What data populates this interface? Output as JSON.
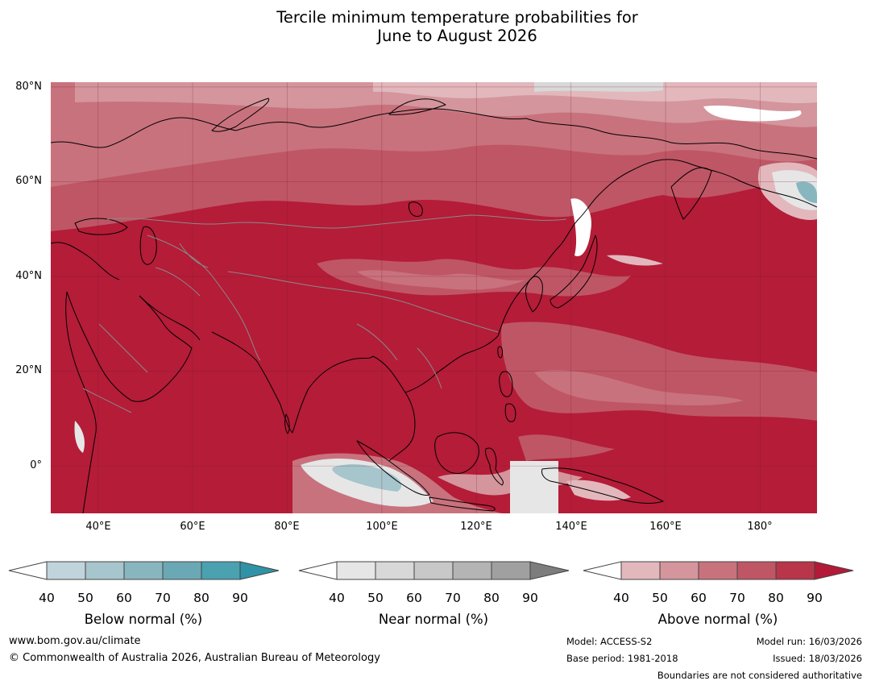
{
  "title_line1": "Tercile minimum temperature probabilities for",
  "title_line2": "June to August 2026",
  "map": {
    "lat_labels": [
      "80°N",
      "60°N",
      "40°N",
      "20°N",
      "0°"
    ],
    "lon_labels": [
      "40°E",
      "60°E",
      "80°E",
      "100°E",
      "120°E",
      "140°E",
      "160°E",
      "180°"
    ],
    "lon_range": [
      30,
      192
    ],
    "lat_range": [
      -10,
      81
    ]
  },
  "legends": [
    {
      "title": "Below normal (%)",
      "ticks": [
        "40",
        "50",
        "60",
        "70",
        "80",
        "90"
      ],
      "colors": [
        "#c0d4db",
        "#a6c5cc",
        "#88b6bf",
        "#6aa8b5",
        "#4aa1b0",
        "#2f92a6"
      ]
    },
    {
      "title": "Near normal (%)",
      "ticks": [
        "40",
        "50",
        "60",
        "70",
        "80",
        "90"
      ],
      "colors": [
        "#e6e6e6",
        "#d8d8d8",
        "#c8c8c8",
        "#b4b4b4",
        "#a0a0a0",
        "#7d7d7d"
      ]
    },
    {
      "title": "Above normal (%)",
      "ticks": [
        "40",
        "50",
        "60",
        "70",
        "80",
        "90"
      ],
      "colors": [
        "#e2b8bd",
        "#d4959c",
        "#c8727d",
        "#bf5665",
        "#b8354a",
        "#b21a37"
      ]
    }
  ],
  "footer": {
    "url": "www.bom.gov.au/climate",
    "copyright": "© Commonwealth of Australia 2026, Australian Bureau of Meteorology",
    "model": "Model: ACCESS-S2",
    "base_period": "Base period: 1981-2018",
    "model_run": "Model run: 16/03/2026",
    "issued": "Issued: 18/03/2026",
    "boundaries_note": "Boundaries are not considered authoritative"
  }
}
